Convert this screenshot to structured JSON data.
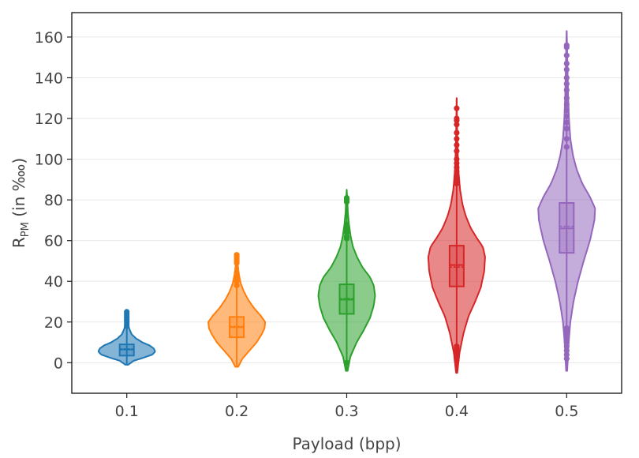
{
  "chart_data": {
    "type": "violin",
    "title": "",
    "xlabel": "Payload (bpp)",
    "ylabel": {
      "main": "R",
      "sub": "PM",
      "rest": " (in ‱)"
    },
    "ylim": [
      -15,
      172
    ],
    "yticks": [
      0,
      20,
      40,
      60,
      80,
      100,
      120,
      140,
      160
    ],
    "grid": "horizontal",
    "legend": "none",
    "categories": [
      "0.1",
      "0.2",
      "0.3",
      "0.4",
      "0.5"
    ],
    "series": [
      {
        "name": "0.1",
        "color": "#1f77b4",
        "whisker": [
          -1,
          25
        ],
        "q1": 3.5,
        "median": 6.5,
        "mean": 6.8,
        "q3": 9,
        "density": [
          [
            -1,
            0.05
          ],
          [
            1,
            0.25
          ],
          [
            2.5,
            0.6
          ],
          [
            4,
            0.9
          ],
          [
            5.5,
            1.0
          ],
          [
            7,
            0.95
          ],
          [
            8.5,
            0.8
          ],
          [
            10,
            0.55
          ],
          [
            12,
            0.32
          ],
          [
            14,
            0.17
          ],
          [
            17,
            0.08
          ],
          [
            20,
            0.04
          ],
          [
            23,
            0.02
          ],
          [
            25,
            0.0
          ]
        ],
        "outliers": [
          18,
          19,
          20,
          21,
          22,
          23,
          24,
          25
        ]
      },
      {
        "name": "0.2",
        "color": "#ff7f0e",
        "whisker": [
          -2,
          53
        ],
        "q1": 12.5,
        "median": 17.5,
        "mean": 17.8,
        "q3": 22.5,
        "density": [
          [
            -2,
            0.05
          ],
          [
            2,
            0.2
          ],
          [
            6,
            0.45
          ],
          [
            10,
            0.7
          ],
          [
            14,
            0.88
          ],
          [
            17,
            0.98
          ],
          [
            20,
            1.0
          ],
          [
            23,
            0.85
          ],
          [
            27,
            0.6
          ],
          [
            31,
            0.4
          ],
          [
            35,
            0.25
          ],
          [
            39,
            0.14
          ],
          [
            44,
            0.07
          ],
          [
            49,
            0.03
          ],
          [
            53,
            0.0
          ]
        ],
        "outliers": [
          38,
          40,
          42,
          44,
          49,
          50,
          51,
          52,
          53
        ]
      },
      {
        "name": "0.3",
        "color": "#2ca02c",
        "whisker": [
          -4,
          85
        ],
        "q1": 24,
        "median": 31,
        "mean": 31.5,
        "q3": 38.5,
        "density": [
          [
            -4,
            0.03
          ],
          [
            3,
            0.13
          ],
          [
            10,
            0.35
          ],
          [
            16,
            0.6
          ],
          [
            22,
            0.82
          ],
          [
            28,
            0.95
          ],
          [
            33,
            1.0
          ],
          [
            38,
            0.95
          ],
          [
            42,
            0.82
          ],
          [
            47,
            0.55
          ],
          [
            52,
            0.36
          ],
          [
            57,
            0.22
          ],
          [
            62,
            0.14
          ],
          [
            68,
            0.08
          ],
          [
            74,
            0.04
          ],
          [
            80,
            0.02
          ],
          [
            85,
            0.0
          ]
        ],
        "outliers": [
          0,
          61,
          62,
          64,
          65,
          66,
          67,
          68,
          79,
          80,
          81
        ]
      },
      {
        "name": "0.4",
        "color": "#d62728",
        "whisker": [
          -5,
          130
        ],
        "q1": 37.5,
        "median": 48,
        "mean": 47,
        "q3": 57.5,
        "density": [
          [
            -5,
            0.02
          ],
          [
            5,
            0.1
          ],
          [
            15,
            0.25
          ],
          [
            23,
            0.42
          ],
          [
            30,
            0.65
          ],
          [
            37,
            0.85
          ],
          [
            45,
            0.97
          ],
          [
            52,
            1.0
          ],
          [
            57,
            0.92
          ],
          [
            61,
            0.72
          ],
          [
            66,
            0.5
          ],
          [
            72,
            0.32
          ],
          [
            78,
            0.2
          ],
          [
            85,
            0.12
          ],
          [
            93,
            0.07
          ],
          [
            102,
            0.04
          ],
          [
            112,
            0.02
          ],
          [
            122,
            0.01
          ],
          [
            130,
            0.0
          ]
        ],
        "outliers": [
          1,
          2,
          3,
          4,
          5,
          6,
          7,
          8,
          88,
          90,
          92,
          94,
          96,
          98,
          100,
          104,
          107,
          110,
          113,
          117,
          119,
          120,
          125
        ]
      },
      {
        "name": "0.5",
        "color": "#9467bd",
        "whisker": [
          -4,
          163
        ],
        "q1": 54,
        "median": 66,
        "mean": 67,
        "q3": 78.5,
        "density": [
          [
            -4,
            0.02
          ],
          [
            8,
            0.06
          ],
          [
            20,
            0.13
          ],
          [
            30,
            0.24
          ],
          [
            40,
            0.4
          ],
          [
            50,
            0.6
          ],
          [
            60,
            0.82
          ],
          [
            70,
            0.98
          ],
          [
            76,
            1.0
          ],
          [
            82,
            0.8
          ],
          [
            88,
            0.55
          ],
          [
            95,
            0.35
          ],
          [
            102,
            0.22
          ],
          [
            110,
            0.13
          ],
          [
            120,
            0.08
          ],
          [
            132,
            0.05
          ],
          [
            145,
            0.03
          ],
          [
            155,
            0.015
          ],
          [
            163,
            0.0
          ]
        ],
        "outliers": [
          2,
          4,
          6,
          8,
          10,
          12,
          14,
          16,
          17,
          106,
          110,
          115,
          118,
          121,
          124,
          127,
          130,
          134,
          137,
          140,
          144,
          147,
          151,
          155,
          156
        ]
      }
    ]
  }
}
